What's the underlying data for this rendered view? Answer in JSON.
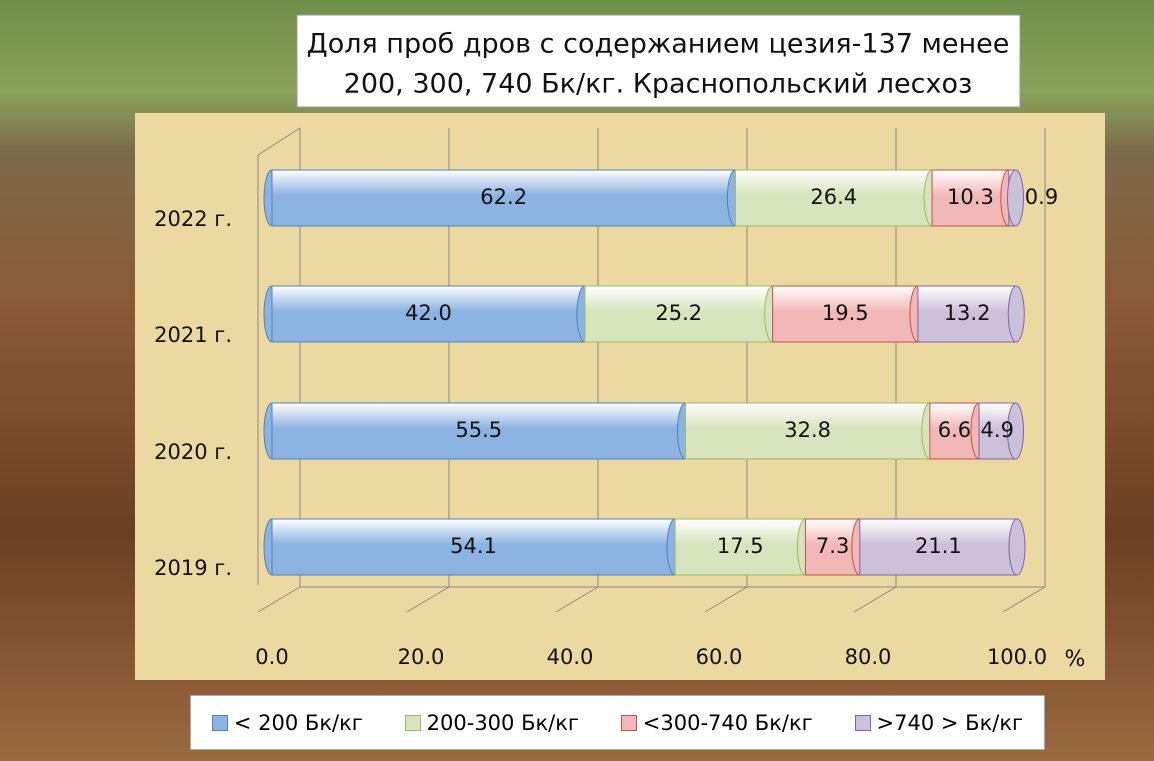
{
  "chart_data": {
    "type": "stacked-bar-3d",
    "title": [
      "Доля проб дров с содержанием цезия-137 менее",
      "200, 300, 740 Бк/кг. Краснопольский лесхоз"
    ],
    "categories": [
      "2019 г.",
      "2020 г.",
      "2021 г.",
      "2022 г."
    ],
    "series": [
      {
        "name": "< 200 Бк/кг",
        "color": "#8db3e2",
        "values": [
          54.1,
          55.5,
          42.0,
          62.2
        ],
        "value_labels": [
          "54.1",
          "55.5",
          "42.0",
          "62.2"
        ]
      },
      {
        "name": "200-300 Бк/кг",
        "color": "#d7e4bd",
        "values": [
          17.5,
          32.8,
          25.2,
          26.4
        ],
        "value_labels": [
          "17.5",
          "32.8",
          "25.2",
          "26.4"
        ]
      },
      {
        "name": "<300-740 Бк/кг",
        "color": "#f2b8b8",
        "values": [
          7.3,
          6.6,
          19.5,
          10.3
        ],
        "value_labels": [
          "7.3",
          "6.6",
          "19.5",
          "10.3"
        ]
      },
      {
        "name": ">740 > Бк/кг",
        "color": "#ccc1da",
        "values": [
          21.1,
          4.9,
          13.2,
          0.9
        ],
        "value_labels": [
          "21.1",
          "4.9",
          "13.2",
          "0.9"
        ]
      }
    ],
    "xlabel": "%",
    "xlim": [
      0,
      100
    ],
    "xticks": [
      {
        "value": 0,
        "label": "0.0"
      },
      {
        "value": 20,
        "label": "20.0"
      },
      {
        "value": 40,
        "label": "40.0"
      },
      {
        "value": 60,
        "label": "60.0"
      },
      {
        "value": 80,
        "label": "80.0"
      },
      {
        "value": 100,
        "label": "100.0"
      }
    ],
    "grid": true
  }
}
